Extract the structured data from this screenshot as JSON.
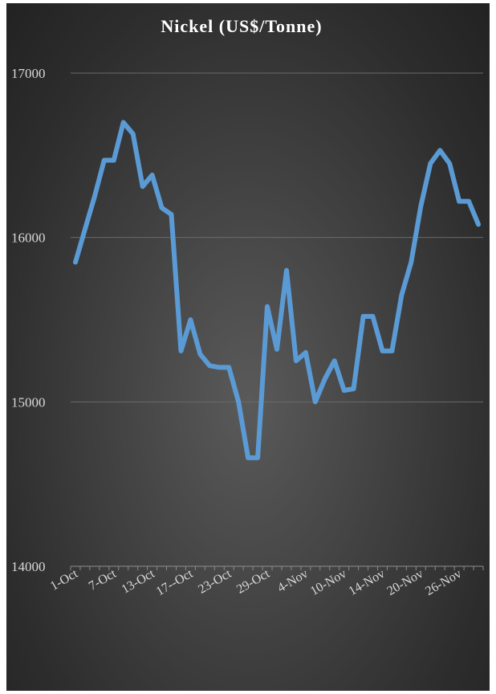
{
  "chart_data": {
    "type": "line",
    "title": "Nickel (US$/Tonne)",
    "xlabel": "",
    "ylabel": "",
    "ylim": [
      14000,
      17000
    ],
    "yticks": [
      14000,
      15000,
      16000,
      17000
    ],
    "grid": true,
    "legend": "none",
    "x_tick_labels": [
      "1-Oct",
      "7-Oct",
      "13-Oct",
      "17--Oct",
      "23-Oct",
      "29-Oct",
      "4-Nov",
      "10-Nov",
      "14-Nov",
      "20-Nov",
      "26-Nov"
    ],
    "series": [
      {
        "color": "#5b9bd5",
        "values": [
          15850,
          16050,
          16250,
          16470,
          16470,
          16700,
          16630,
          16310,
          16380,
          16180,
          16140,
          15310,
          15500,
          15290,
          15220,
          15210,
          15210,
          15000,
          14660,
          14660,
          15580,
          15320,
          15800,
          15250,
          15300,
          15000,
          15140,
          15250,
          15070,
          15080,
          15520,
          15520,
          15310,
          15310,
          15650,
          15850,
          16190,
          16450,
          16530,
          16450,
          16220,
          16220,
          16080
        ]
      }
    ]
  }
}
